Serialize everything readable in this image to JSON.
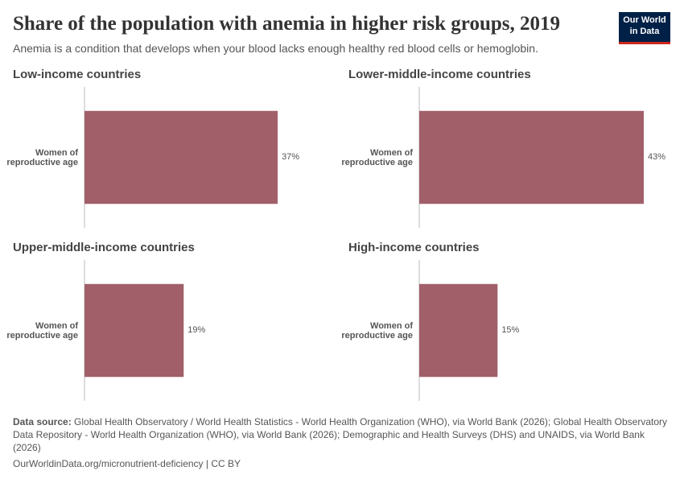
{
  "title": "Share of the population with anemia in higher risk groups, 2019",
  "subtitle": "Anemia is a condition that develops when your blood lacks enough healthy red blood cells or hemoglobin.",
  "logo": "Our World in Data",
  "source_label": "Data source:",
  "source": "Global Health Observatory / World Health Statistics - World Health Organization (WHO), via World Bank (2026); Global Health Observatory Data Repository - World Health Organization (WHO), via World Bank (2026); Demographic and Health Surveys (DHS) and UNAIDS, via World Bank (2026)",
  "url": "OurWorldinData.org/micronutrient-deficiency | CC BY",
  "chart_data": [
    {
      "type": "bar",
      "title": "Low-income countries",
      "categories": [
        "Women of reproductive age"
      ],
      "values": [
        37
      ],
      "value_labels": [
        "37%"
      ],
      "color": "#a05f69",
      "xlim": [
        0,
        43
      ]
    },
    {
      "type": "bar",
      "title": "Lower-middle-income countries",
      "categories": [
        "Women of reproductive age"
      ],
      "values": [
        43
      ],
      "value_labels": [
        "43%"
      ],
      "color": "#a05f69",
      "xlim": [
        0,
        43
      ]
    },
    {
      "type": "bar",
      "title": "Upper-middle-income countries",
      "categories": [
        "Women of reproductive age"
      ],
      "values": [
        19
      ],
      "value_labels": [
        "19%"
      ],
      "color": "#a05f69",
      "xlim": [
        0,
        43
      ]
    },
    {
      "type": "bar",
      "title": "High-income countries",
      "categories": [
        "Women of reproductive age"
      ],
      "values": [
        15
      ],
      "value_labels": [
        "15%"
      ],
      "color": "#a05f69",
      "xlim": [
        0,
        43
      ]
    }
  ]
}
